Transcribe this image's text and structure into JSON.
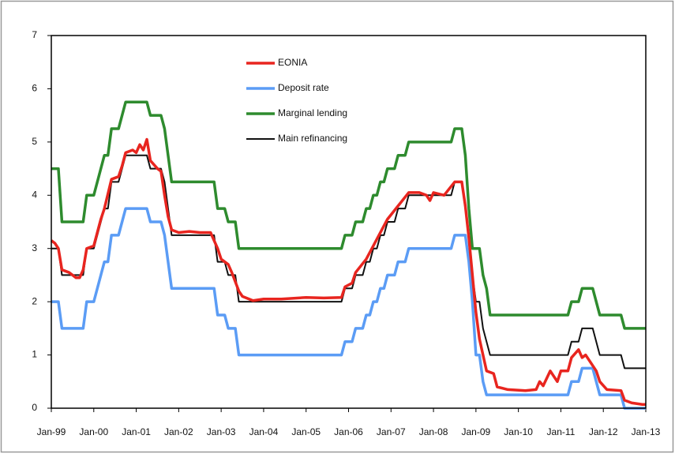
{
  "chart_data": {
    "type": "line",
    "xlim": [
      "1999-01",
      "2013-01"
    ],
    "xticks": [
      {
        "value": "1999-01",
        "label": "Jan-99"
      },
      {
        "value": "2000-01",
        "label": "Jan-00"
      },
      {
        "value": "2001-01",
        "label": "Jan-01"
      },
      {
        "value": "2002-01",
        "label": "Jan-02"
      },
      {
        "value": "2003-01",
        "label": "Jan-03"
      },
      {
        "value": "2004-01",
        "label": "Jan-04"
      },
      {
        "value": "2005-01",
        "label": "Jan-05"
      },
      {
        "value": "2006-01",
        "label": "Jan-06"
      },
      {
        "value": "2007-01",
        "label": "Jan-07"
      },
      {
        "value": "2008-01",
        "label": "Jan-08"
      },
      {
        "value": "2009-01",
        "label": "Jan-09"
      },
      {
        "value": "2010-01",
        "label": "Jan-10"
      },
      {
        "value": "2011-01",
        "label": "Jan-11"
      },
      {
        "value": "2012-01",
        "label": "Jan-12"
      },
      {
        "value": "2013-01",
        "label": "Jan-13"
      }
    ],
    "ylim": [
      0,
      7
    ],
    "yticks": [
      0,
      1,
      2,
      3,
      4,
      5,
      6,
      7
    ],
    "grid": false,
    "series": [
      {
        "name": "EONIA",
        "color": "#e8251f",
        "x": [
          "1999-01",
          "1999-02",
          "1999-03",
          "1999-04",
          "1999-06",
          "1999-08",
          "1999-09",
          "1999-10",
          "1999-11",
          "2000-01",
          "2000-02",
          "2000-03",
          "2000-04",
          "2000-06",
          "2000-08",
          "2000-09",
          "2000-10",
          "2000-12",
          "2001-01",
          "2001-02",
          "2001-03",
          "2001-04",
          "2001-05",
          "2001-07",
          "2001-08",
          "2001-09",
          "2001-10",
          "2001-11",
          "2002-01",
          "2002-04",
          "2002-07",
          "2002-10",
          "2002-12",
          "2003-01",
          "2003-03",
          "2003-04",
          "2003-06",
          "2003-07",
          "2003-10",
          "2004-01",
          "2004-06",
          "2005-01",
          "2005-06",
          "2005-11",
          "2005-12",
          "2006-02",
          "2006-03",
          "2006-06",
          "2006-08",
          "2006-10",
          "2006-12",
          "2007-03",
          "2007-06",
          "2007-09",
          "2007-11",
          "2007-12",
          "2008-01",
          "2008-04",
          "2008-07",
          "2008-09",
          "2008-10",
          "2008-11",
          "2008-12",
          "2009-01",
          "2009-02",
          "2009-03",
          "2009-04",
          "2009-06",
          "2009-07",
          "2009-10",
          "2010-03",
          "2010-06",
          "2010-07",
          "2010-08",
          "2010-10",
          "2010-11",
          "2010-12",
          "2011-01",
          "2011-03",
          "2011-04",
          "2011-06",
          "2011-07",
          "2011-08",
          "2011-10",
          "2011-11",
          "2011-12",
          "2012-02",
          "2012-06",
          "2012-07",
          "2012-09",
          "2012-12",
          "2013-01"
        ],
        "values": [
          3.15,
          3.1,
          3.0,
          2.6,
          2.55,
          2.45,
          2.45,
          2.6,
          3.0,
          3.05,
          3.3,
          3.55,
          3.75,
          4.3,
          4.35,
          4.55,
          4.8,
          4.85,
          4.8,
          4.95,
          4.85,
          5.05,
          4.65,
          4.5,
          4.45,
          4.0,
          3.6,
          3.35,
          3.3,
          3.32,
          3.3,
          3.3,
          3.0,
          2.8,
          2.7,
          2.55,
          2.2,
          2.1,
          2.02,
          2.05,
          2.05,
          2.08,
          2.07,
          2.08,
          2.28,
          2.35,
          2.55,
          2.8,
          3.05,
          3.3,
          3.55,
          3.8,
          4.05,
          4.05,
          4.0,
          3.9,
          4.05,
          4.0,
          4.25,
          4.25,
          3.8,
          3.2,
          2.5,
          1.8,
          1.3,
          1.0,
          0.7,
          0.65,
          0.4,
          0.35,
          0.33,
          0.35,
          0.5,
          0.42,
          0.7,
          0.6,
          0.5,
          0.7,
          0.7,
          0.95,
          1.1,
          0.95,
          1.0,
          0.8,
          0.7,
          0.5,
          0.35,
          0.33,
          0.15,
          0.1,
          0.07,
          0.07
        ]
      },
      {
        "name": "Deposit rate",
        "color": "#5b9cf5",
        "x": [
          "1999-01",
          "1999-03",
          "1999-04",
          "1999-10",
          "1999-11",
          "2000-01",
          "2000-02",
          "2000-03",
          "2000-04",
          "2000-05",
          "2000-06",
          "2000-08",
          "2000-09",
          "2000-10",
          "2001-04",
          "2001-05",
          "2001-08",
          "2001-09",
          "2001-10",
          "2001-11",
          "2002-11",
          "2002-12",
          "2003-02",
          "2003-03",
          "2003-05",
          "2003-06",
          "2005-11",
          "2005-12",
          "2006-02",
          "2006-03",
          "2006-05",
          "2006-06",
          "2006-07",
          "2006-08",
          "2006-09",
          "2006-10",
          "2006-11",
          "2006-12",
          "2007-02",
          "2007-03",
          "2007-05",
          "2007-06",
          "2008-06",
          "2008-07",
          "2008-09",
          "2008-10",
          "2008-11",
          "2008-12",
          "2009-01",
          "2009-02",
          "2009-03",
          "2009-04",
          "2009-05",
          "2011-03",
          "2011-04",
          "2011-06",
          "2011-07",
          "2011-10",
          "2011-11",
          "2011-12",
          "2012-06",
          "2012-07",
          "2013-01"
        ],
        "values": [
          2,
          2,
          1.5,
          1.5,
          2,
          2,
          2.25,
          2.5,
          2.75,
          2.75,
          3.25,
          3.25,
          3.5,
          3.75,
          3.75,
          3.5,
          3.5,
          3.25,
          2.75,
          2.25,
          2.25,
          1.75,
          1.75,
          1.5,
          1.5,
          1,
          1,
          1.25,
          1.25,
          1.5,
          1.5,
          1.75,
          1.75,
          2,
          2,
          2.25,
          2.25,
          2.5,
          2.5,
          2.75,
          2.75,
          3,
          3,
          3.25,
          3.25,
          3.25,
          2.75,
          2,
          1,
          1,
          0.5,
          0.25,
          0.25,
          0.25,
          0.5,
          0.5,
          0.75,
          0.75,
          0.5,
          0.25,
          0.25,
          0,
          0
        ]
      },
      {
        "name": "Marginal lending",
        "color": "#2e8b2e",
        "x": [
          "1999-01",
          "1999-03",
          "1999-04",
          "1999-10",
          "1999-11",
          "2000-01",
          "2000-02",
          "2000-03",
          "2000-04",
          "2000-05",
          "2000-06",
          "2000-08",
          "2000-09",
          "2000-10",
          "2001-04",
          "2001-05",
          "2001-08",
          "2001-09",
          "2001-10",
          "2001-11",
          "2002-11",
          "2002-12",
          "2003-02",
          "2003-03",
          "2003-05",
          "2003-06",
          "2005-11",
          "2005-12",
          "2006-02",
          "2006-03",
          "2006-05",
          "2006-06",
          "2006-07",
          "2006-08",
          "2006-09",
          "2006-10",
          "2006-11",
          "2006-12",
          "2007-02",
          "2007-03",
          "2007-05",
          "2007-06",
          "2008-06",
          "2008-07",
          "2008-09",
          "2008-10",
          "2008-11",
          "2008-12",
          "2009-01",
          "2009-02",
          "2009-03",
          "2009-04",
          "2009-05",
          "2011-03",
          "2011-04",
          "2011-06",
          "2011-07",
          "2011-10",
          "2011-11",
          "2011-12",
          "2012-06",
          "2012-07",
          "2013-01"
        ],
        "values": [
          4.5,
          4.5,
          3.5,
          3.5,
          4,
          4,
          4.25,
          4.5,
          4.75,
          4.75,
          5.25,
          5.25,
          5.5,
          5.75,
          5.75,
          5.5,
          5.5,
          5.25,
          4.75,
          4.25,
          4.25,
          3.75,
          3.75,
          3.5,
          3.5,
          3,
          3,
          3.25,
          3.25,
          3.5,
          3.5,
          3.75,
          3.75,
          4,
          4,
          4.25,
          4.25,
          4.5,
          4.5,
          4.75,
          4.75,
          5,
          5,
          5.25,
          5.25,
          4.75,
          3.75,
          3,
          3,
          3,
          2.5,
          2.25,
          1.75,
          1.75,
          2,
          2,
          2.25,
          2.25,
          2,
          1.75,
          1.75,
          1.5,
          1.5
        ]
      },
      {
        "name": "Main refinancing",
        "color": "#111111",
        "x": [
          "1999-01",
          "1999-03",
          "1999-04",
          "1999-10",
          "1999-11",
          "2000-01",
          "2000-02",
          "2000-03",
          "2000-04",
          "2000-05",
          "2000-06",
          "2000-08",
          "2000-09",
          "2000-10",
          "2001-04",
          "2001-05",
          "2001-08",
          "2001-09",
          "2001-10",
          "2001-11",
          "2002-11",
          "2002-12",
          "2003-02",
          "2003-03",
          "2003-05",
          "2003-06",
          "2005-11",
          "2005-12",
          "2006-02",
          "2006-03",
          "2006-05",
          "2006-06",
          "2006-07",
          "2006-08",
          "2006-09",
          "2006-10",
          "2006-11",
          "2006-12",
          "2007-02",
          "2007-03",
          "2007-05",
          "2007-06",
          "2008-06",
          "2008-07",
          "2008-09",
          "2008-10",
          "2008-11",
          "2008-12",
          "2009-01",
          "2009-02",
          "2009-03",
          "2009-04",
          "2009-05",
          "2011-03",
          "2011-04",
          "2011-06",
          "2011-07",
          "2011-10",
          "2011-11",
          "2011-12",
          "2012-06",
          "2012-07",
          "2013-01"
        ],
        "values": [
          3,
          3,
          2.5,
          2.5,
          3,
          3,
          3.25,
          3.5,
          3.75,
          3.75,
          4.25,
          4.25,
          4.5,
          4.75,
          4.75,
          4.5,
          4.5,
          4.25,
          3.75,
          3.25,
          3.25,
          2.75,
          2.75,
          2.5,
          2.5,
          2,
          2,
          2.25,
          2.25,
          2.5,
          2.5,
          2.75,
          2.75,
          3,
          3,
          3.25,
          3.25,
          3.5,
          3.5,
          3.75,
          3.75,
          4,
          4,
          4.25,
          4.25,
          3.75,
          3.25,
          2.5,
          2,
          2,
          1.5,
          1.25,
          1,
          1,
          1.25,
          1.25,
          1.5,
          1.5,
          1.25,
          1,
          1,
          0.75,
          0.75
        ]
      }
    ]
  }
}
